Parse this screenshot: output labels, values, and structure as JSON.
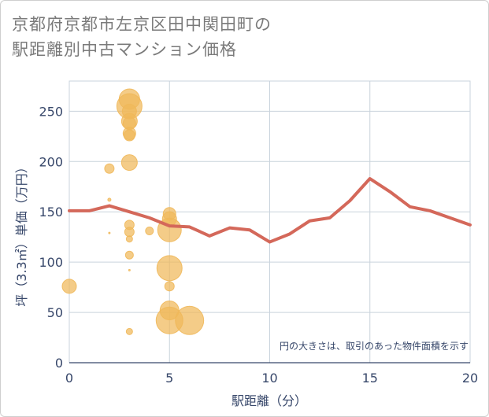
{
  "chart_data": {
    "type": "scatter",
    "title_lines": [
      "京都府京都市左京区田中関田町の",
      "駅距離別中古マンション価格"
    ],
    "xlabel": "駅距離（分）",
    "ylabel": "坪（3.3㎡）単価（万円）",
    "xlim": [
      0,
      20
    ],
    "ylim": [
      0,
      280
    ],
    "xticks": [
      0,
      5,
      10,
      15,
      20
    ],
    "yticks": [
      0,
      50,
      100,
      150,
      200,
      250
    ],
    "grid": true,
    "annotation": "円の大きさは、取引のあった物件面積を示す",
    "colors": {
      "bubble": "#f0b85a",
      "line": "#d4685a",
      "grid": "#c9d3dc",
      "text": "#37476a"
    },
    "bubbles": [
      {
        "x": 0,
        "y": 76,
        "s": 9
      },
      {
        "x": 2,
        "y": 193,
        "s": 6
      },
      {
        "x": 2,
        "y": 162,
        "s": 2
      },
      {
        "x": 2,
        "y": 129,
        "s": 1
      },
      {
        "x": 3,
        "y": 262,
        "s": 13
      },
      {
        "x": 3,
        "y": 255,
        "s": 16
      },
      {
        "x": 3,
        "y": 250,
        "s": 9
      },
      {
        "x": 3,
        "y": 240,
        "s": 10
      },
      {
        "x": 3,
        "y": 238,
        "s": 8
      },
      {
        "x": 3,
        "y": 228,
        "s": 8
      },
      {
        "x": 3,
        "y": 226,
        "s": 7
      },
      {
        "x": 3,
        "y": 199,
        "s": 10
      },
      {
        "x": 3,
        "y": 137,
        "s": 6
      },
      {
        "x": 3,
        "y": 130,
        "s": 6
      },
      {
        "x": 3,
        "y": 123,
        "s": 4
      },
      {
        "x": 3,
        "y": 107,
        "s": 5
      },
      {
        "x": 3,
        "y": 92,
        "s": 1
      },
      {
        "x": 3,
        "y": 31,
        "s": 4
      },
      {
        "x": 4,
        "y": 131,
        "s": 5
      },
      {
        "x": 5,
        "y": 148,
        "s": 8
      },
      {
        "x": 5,
        "y": 143,
        "s": 9
      },
      {
        "x": 5,
        "y": 132,
        "s": 15
      },
      {
        "x": 5,
        "y": 94,
        "s": 16
      },
      {
        "x": 5,
        "y": 76,
        "s": 6
      },
      {
        "x": 5,
        "y": 52,
        "s": 12
      },
      {
        "x": 5,
        "y": 42,
        "s": 17
      },
      {
        "x": 6,
        "y": 42,
        "s": 18
      }
    ],
    "series": [
      {
        "name": "average",
        "x": [
          0,
          1,
          2,
          3,
          4,
          5,
          6,
          7,
          8,
          9,
          10,
          11,
          12,
          13,
          14,
          15,
          16,
          17,
          18,
          19,
          20
        ],
        "values": [
          151,
          151,
          156,
          150,
          144,
          136,
          135,
          126,
          134,
          132,
          120,
          128,
          141,
          144,
          161,
          183,
          170,
          155,
          151,
          144,
          137
        ]
      }
    ]
  }
}
